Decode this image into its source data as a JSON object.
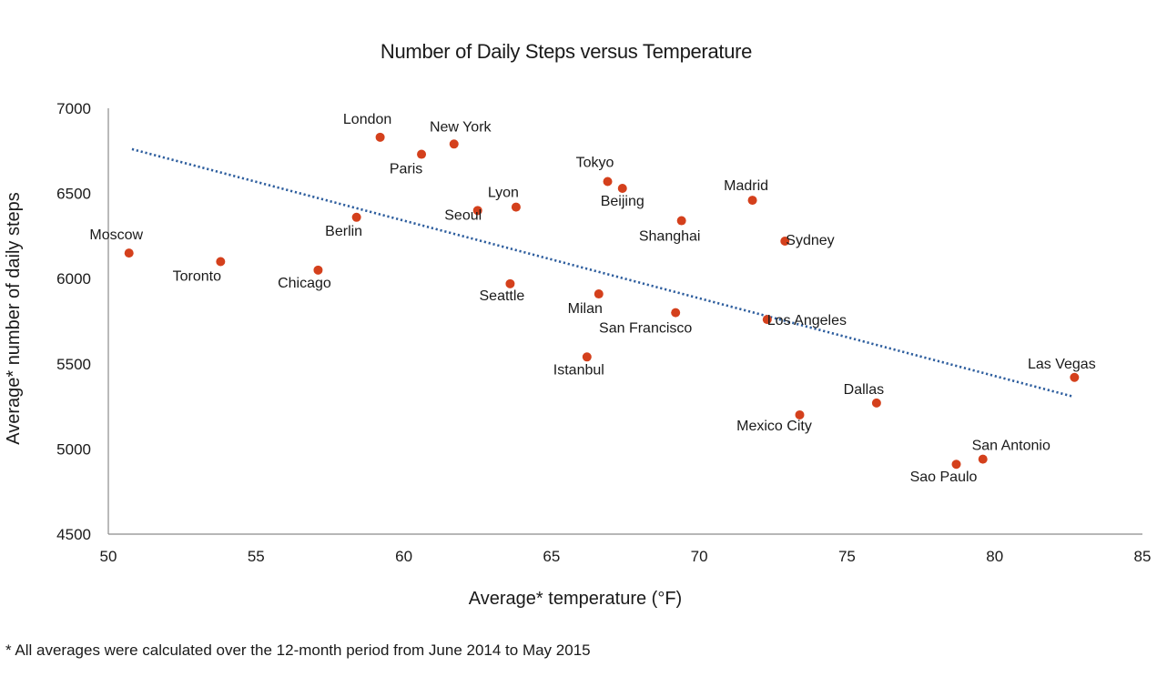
{
  "chart_data": {
    "type": "scatter",
    "title": "Number of Daily Steps versus Temperature",
    "xlabel": "Average* temperature (°F)",
    "ylabel": "Average* number of daily steps",
    "xlim": [
      50,
      85
    ],
    "ylim": [
      4500,
      7000
    ],
    "x_ticks": [
      "50",
      "55",
      "60",
      "65",
      "70",
      "75",
      "80",
      "85"
    ],
    "y_ticks": [
      "4500",
      "5000",
      "5500",
      "6000",
      "6500",
      "7000"
    ],
    "point_color": "#d4401c",
    "trendline": {
      "style": "dotted",
      "color": "#2e5e9e",
      "x": [
        50.8,
        82.6
      ],
      "y": [
        6760,
        5310
      ]
    },
    "points": [
      {
        "label": "Moscow",
        "x": 50.7,
        "y": 6150
      },
      {
        "label": "Toronto",
        "x": 53.8,
        "y": 6100
      },
      {
        "label": "Chicago",
        "x": 57.1,
        "y": 6050
      },
      {
        "label": "Berlin",
        "x": 58.4,
        "y": 6360
      },
      {
        "label": "London",
        "x": 59.2,
        "y": 6830
      },
      {
        "label": "Paris",
        "x": 60.6,
        "y": 6730
      },
      {
        "label": "New York",
        "x": 61.7,
        "y": 6790
      },
      {
        "label": "Seoul",
        "x": 62.5,
        "y": 6400
      },
      {
        "label": "Lyon",
        "x": 63.8,
        "y": 6420
      },
      {
        "label": "Seattle",
        "x": 63.6,
        "y": 5970
      },
      {
        "label": "Istanbul",
        "x": 66.2,
        "y": 5540
      },
      {
        "label": "Milan",
        "x": 66.6,
        "y": 5910
      },
      {
        "label": "Tokyo",
        "x": 66.9,
        "y": 6570
      },
      {
        "label": "Beijing",
        "x": 67.4,
        "y": 6530
      },
      {
        "label": "San Francisco",
        "x": 69.2,
        "y": 5800
      },
      {
        "label": "Shanghai",
        "x": 69.4,
        "y": 6340
      },
      {
        "label": "Madrid",
        "x": 71.8,
        "y": 6460
      },
      {
        "label": "Los Angeles",
        "x": 72.3,
        "y": 5760
      },
      {
        "label": "Sydney",
        "x": 72.9,
        "y": 6220
      },
      {
        "label": "Mexico City",
        "x": 73.4,
        "y": 5200
      },
      {
        "label": "Dallas",
        "x": 76.0,
        "y": 5270
      },
      {
        "label": "Sao Paulo",
        "x": 78.7,
        "y": 4910
      },
      {
        "label": "San Antonio",
        "x": 79.6,
        "y": 4940
      },
      {
        "label": "Las Vegas",
        "x": 82.7,
        "y": 5420
      }
    ]
  },
  "footnote": "* All averages were calculated over the 12-month period from June 2014 to May 2015"
}
